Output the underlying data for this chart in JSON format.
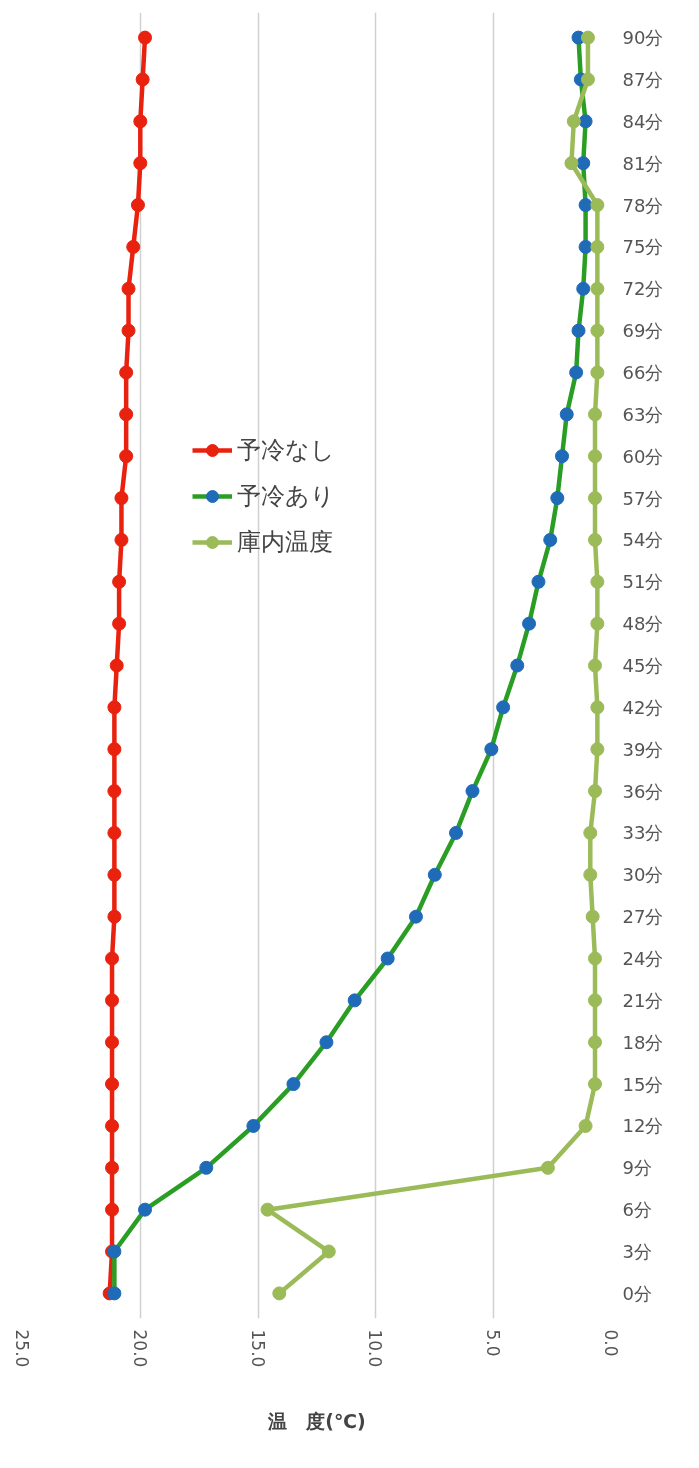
{
  "chart_data": {
    "type": "line",
    "orientation": "horizontal",
    "categories": [
      "90分",
      "87分",
      "84分",
      "81分",
      "78分",
      "75分",
      "72分",
      "69分",
      "66分",
      "63分",
      "60分",
      "57分",
      "54分",
      "51分",
      "48分",
      "45分",
      "42分",
      "39分",
      "36分",
      "33分",
      "30分",
      "27分",
      "24分",
      "21分",
      "18分",
      "15分",
      "12分",
      "9分",
      "6分",
      "3分",
      "0分"
    ],
    "series": [
      {
        "name": "予冷なし",
        "color": "#e8220f",
        "values": [
          19.8,
          19.9,
          20.0,
          20.0,
          20.1,
          20.3,
          20.5,
          20.5,
          20.6,
          20.6,
          20.6,
          20.8,
          20.8,
          20.9,
          20.9,
          21.0,
          21.1,
          21.1,
          21.1,
          21.1,
          21.1,
          21.1,
          21.2,
          21.2,
          21.2,
          21.2,
          21.2,
          21.2,
          21.2,
          21.2,
          21.3
        ]
      },
      {
        "name": "予冷あり",
        "color": "#2a9e24",
        "colors": [
          "#1f6bb8",
          "#1f6bb8",
          "#1f6bb8",
          "#1f6bb8",
          "#1f6bb8",
          "#1f6bb8",
          "#1f6bb8",
          "#1f6bb8",
          "#1f6bb8",
          "#1f6bb8",
          "#1f6bb8",
          "#1f6bb8",
          "#1f6bb8",
          "#1f6bb8",
          "#1f6bb8",
          "#1f6bb8",
          "#1f6bb8",
          "#1f6bb8",
          "#1f6bb8",
          "#1f6bb8",
          "#1f6bb8",
          "#1f6bb8",
          "#1f6bb8",
          "#1f6bb8",
          "#1f6bb8",
          "#1f6bb8",
          "#1f6bb8",
          "#1f6bb8",
          "#1f6bb8",
          "#1f6bb8",
          "#1f6bb8"
        ],
        "values": [
          1.4,
          1.3,
          1.1,
          1.2,
          1.1,
          1.1,
          1.2,
          1.4,
          1.5,
          1.9,
          2.1,
          2.3,
          2.6,
          3.1,
          3.5,
          4.0,
          4.6,
          5.1,
          5.9,
          6.6,
          7.5,
          8.3,
          9.5,
          10.9,
          12.1,
          13.5,
          15.2,
          17.2,
          19.8,
          21.1,
          21.1
        ]
      },
      {
        "name": "庫内温度",
        "color": "#9bbb59",
        "values": [
          1.0,
          1.0,
          1.6,
          1.7,
          0.6,
          0.6,
          0.6,
          0.6,
          0.6,
          0.7,
          0.7,
          0.7,
          0.7,
          0.6,
          0.6,
          0.7,
          0.6,
          0.6,
          0.7,
          0.9,
          0.9,
          0.8,
          0.7,
          0.7,
          0.7,
          0.7,
          1.1,
          2.7,
          14.6,
          12.0,
          14.1
        ]
      }
    ],
    "xlabel": "温　度(℃)",
    "xlim": [
      25,
      0
    ],
    "xticks": [
      {
        "value": 25,
        "label": "25.0"
      },
      {
        "value": 20,
        "label": "20.0"
      },
      {
        "value": 15,
        "label": "15.0"
      },
      {
        "value": 10,
        "label": "10.0"
      },
      {
        "value": 5,
        "label": "5.0"
      },
      {
        "value": 0,
        "label": "0.0"
      }
    ],
    "grid": true,
    "legend": "top left",
    "marker": "circle",
    "line_style": "solid"
  }
}
